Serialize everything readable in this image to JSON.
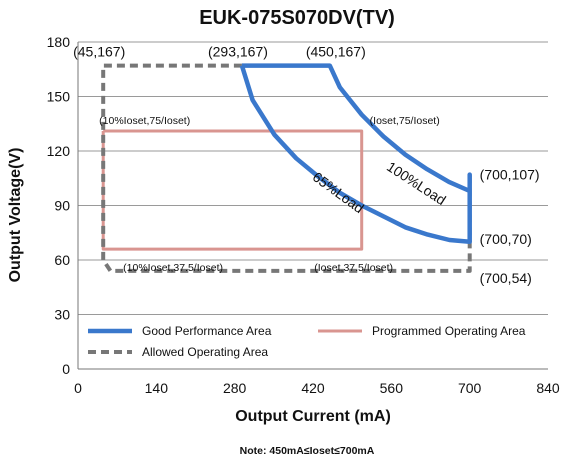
{
  "chart_data": {
    "type": "line",
    "title": "EUK-075S070DV(TV)",
    "xlabel": "Output Current (mA)",
    "ylabel": "Output Voltage(V)",
    "xlim": [
      0,
      840
    ],
    "ylim": [
      0,
      180
    ],
    "x_ticks": [
      "0",
      "140",
      "280",
      "420",
      "560",
      "700",
      "840"
    ],
    "y_ticks": [
      "0",
      "30",
      "60",
      "90",
      "120",
      "150",
      "180"
    ],
    "grid": "horizontal",
    "note": "Note:  450mA≤Ioset≤700mA",
    "colors": {
      "good": "#3a78cc",
      "programmed": "#d99590",
      "allowed": "#777777",
      "grid": "#9a9a9a"
    },
    "series": [
      {
        "name": "Good Performance Area",
        "style": "solid",
        "x": [
          293,
          450,
          468,
          507,
          546,
          585,
          624,
          663,
          700,
          700,
          700,
          664,
          625,
          585,
          546,
          507,
          468,
          429,
          390,
          351,
          312,
          293
        ],
        "y": [
          167,
          167,
          155,
          140,
          128,
          118,
          110,
          103,
          98,
          107,
          70,
          71,
          74,
          78,
          84,
          90,
          97,
          106,
          116,
          129,
          148,
          167
        ]
      },
      {
        "name": "Programmed Operating Area",
        "style": "solid",
        "x": [
          45,
          507,
          507,
          45,
          45
        ],
        "y": [
          131,
          131,
          66,
          66,
          131
        ]
      },
      {
        "name": "Allowed Operating Area",
        "style": "dashed",
        "x": [
          293,
          45,
          45,
          58,
          700,
          700
        ],
        "y": [
          167,
          167,
          60,
          54,
          54,
          107
        ]
      }
    ],
    "annotations": [
      {
        "text": "(45,167)",
        "x": 45,
        "y": 167
      },
      {
        "text": "(293,167)",
        "x": 293,
        "y": 167
      },
      {
        "text": "(450,167)",
        "x": 450,
        "y": 167
      },
      {
        "text": "(10%Ioset,75/Ioset)",
        "x": 45,
        "y": 131
      },
      {
        "text": "(Ioset,75/Ioset)",
        "x": 507,
        "y": 131
      },
      {
        "text": "100%Load",
        "x": 600,
        "y": 100
      },
      {
        "text": "65%Load",
        "x": 460,
        "y": 95
      },
      {
        "text": "(700,107)",
        "x": 700,
        "y": 107
      },
      {
        "text": "(700,70)",
        "x": 700,
        "y": 70
      },
      {
        "text": "(10%Ioset,37.5/Ioset)",
        "x": 45,
        "y": 66
      },
      {
        "text": "(Ioset,37.5/Ioset)",
        "x": 507,
        "y": 66
      },
      {
        "text": "(700,54)",
        "x": 700,
        "y": 54
      }
    ],
    "legend": {
      "position": "bottom-inside",
      "entries": [
        "Good Performance Area",
        "Programmed Operating Area",
        "Allowed Operating Area"
      ]
    }
  }
}
